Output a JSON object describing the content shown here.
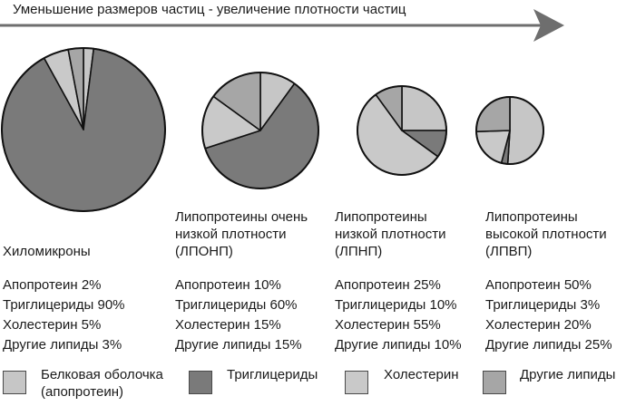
{
  "header": {
    "arrow_label": "Уменьшение размеров частиц - увеличение плотности частиц"
  },
  "colors": {
    "apoprotein": "#c6c6c6",
    "triglycerides": "#7a7a7a",
    "cholesterol": "#c9c9c9",
    "other_lipids": "#a6a6a6",
    "outline": "#111111",
    "arrow": "#6e6e6e"
  },
  "chart_data": {
    "type": "pie",
    "title": "",
    "particles": [
      {
        "name": "Хиломикроны",
        "lines": [
          "Апопротеин 2%",
          "Триглицериды 90%",
          "Холестерин 5%",
          "Другие липиды 3%"
        ],
        "slices": [
          {
            "component": "Апопротеин",
            "value": 2
          },
          {
            "component": "Триглицериды",
            "value": 90
          },
          {
            "component": "Холестерин",
            "value": 5
          },
          {
            "component": "Другие липиды",
            "value": 3
          }
        ]
      },
      {
        "name": "Липопротеины очень\nнизкой плотности\n(ЛПОНП)",
        "lines": [
          "Апопротеин 10%",
          "Триглицериды 60%",
          "Холестерин 15%",
          "Другие липиды 15%"
        ],
        "slices": [
          {
            "component": "Апопротеин",
            "value": 10
          },
          {
            "component": "Триглицериды",
            "value": 60
          },
          {
            "component": "Холестерин",
            "value": 15
          },
          {
            "component": "Другие липиды",
            "value": 15
          }
        ]
      },
      {
        "name": "Липопротеины\nнизкой плотности\n(ЛПНП)",
        "lines": [
          "Апопротеин 25%",
          "Триглицериды 10%",
          "Холестерин 55%",
          "Другие липиды 10%"
        ],
        "slices": [
          {
            "component": "Апопротеин",
            "value": 25
          },
          {
            "component": "Триглицериды",
            "value": 10
          },
          {
            "component": "Холестерин",
            "value": 55
          },
          {
            "component": "Другие липиды",
            "value": 10
          }
        ]
      },
      {
        "name": "Липопротеины\nвысокой плотности\n(ЛПВП)",
        "lines": [
          "Апопротеин 50%",
          "Триглицериды 3%",
          "Холестерин 20%",
          "Другие липиды 25%"
        ],
        "slices": [
          {
            "component": "Апопротеин",
            "value": 50
          },
          {
            "component": "Триглицериды",
            "value": 3
          },
          {
            "component": "Холестерин",
            "value": 20
          },
          {
            "component": "Другие липиды",
            "value": 25
          }
        ]
      }
    ],
    "legend": [
      {
        "label": "Белковая оболочка\n(апопротеин)",
        "color_key": "apoprotein"
      },
      {
        "label": "Триглицериды",
        "color_key": "triglycerides"
      },
      {
        "label": "Холестерин",
        "color_key": "cholesterol"
      },
      {
        "label": "Другие липиды",
        "color_key": "other_lipids"
      }
    ]
  }
}
